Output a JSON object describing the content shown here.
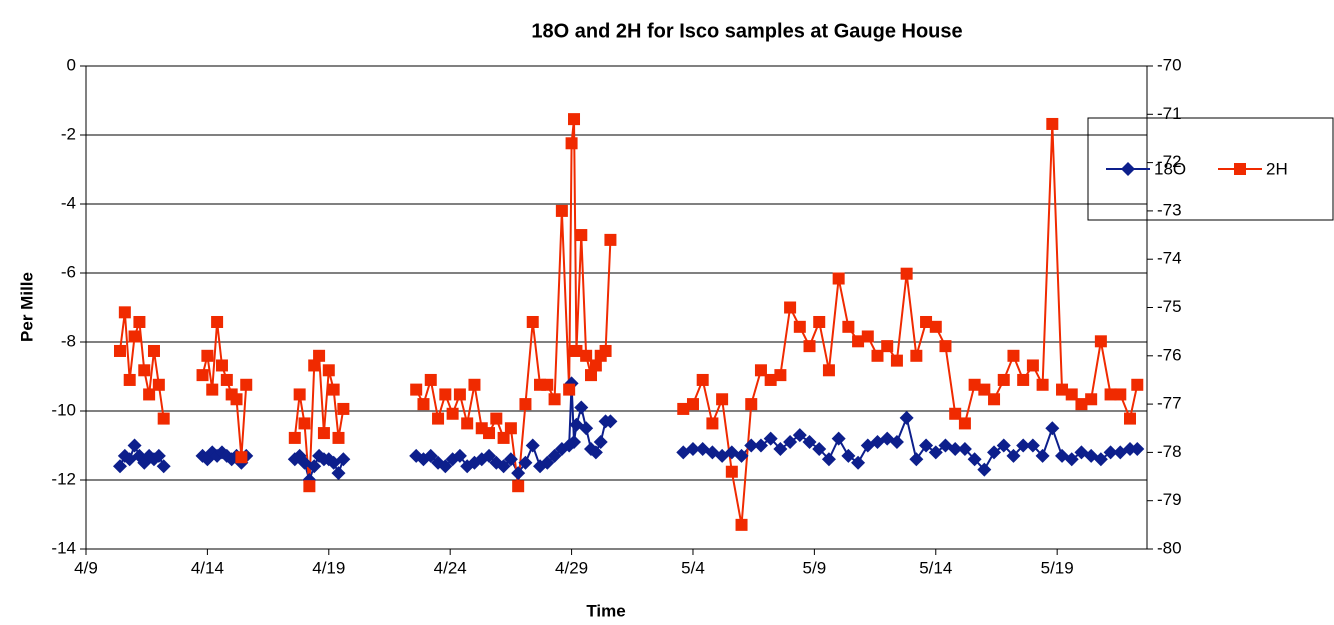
{
  "chart_data": {
    "type": "line",
    "title": "18O and 2H for Isco samples at Gauge House",
    "x_label": "Time",
    "y_label": "Per Mille",
    "x": [
      10.4,
      10.6,
      10.8,
      11.0,
      11.2,
      11.4,
      11.6,
      11.8,
      12.0,
      12.2,
      12.9,
      13.8,
      14.0,
      14.2,
      14.4,
      14.6,
      14.8,
      15.0,
      15.2,
      15.4,
      15.6,
      16.6,
      17.6,
      17.8,
      18.0,
      18.2,
      18.4,
      18.6,
      18.8,
      19.0,
      19.2,
      19.4,
      19.6,
      21.1,
      22.6,
      22.9,
      23.2,
      23.5,
      23.8,
      24.1,
      24.4,
      24.7,
      25.0,
      25.3,
      25.6,
      25.9,
      26.2,
      26.5,
      26.8,
      27.1,
      27.4,
      27.7,
      28.0,
      28.3,
      28.6,
      28.9,
      29.0,
      29.1,
      29.2,
      29.4,
      29.6,
      29.8,
      30.0,
      30.2,
      30.4,
      30.6,
      32.1,
      33.6,
      34.0,
      34.4,
      34.8,
      35.2,
      35.6,
      36.0,
      36.4,
      36.8,
      37.2,
      37.6,
      38.0,
      38.4,
      38.8,
      39.2,
      39.6,
      40.0,
      40.4,
      40.8,
      41.2,
      41.6,
      42.0,
      42.4,
      42.8,
      43.2,
      43.6,
      44.0,
      44.4,
      44.8,
      45.2,
      45.6,
      46.0,
      46.4,
      46.8,
      47.2,
      47.6,
      48.0,
      48.4,
      48.8,
      49.2,
      49.6,
      50.0,
      50.4,
      50.8,
      51.2,
      51.6,
      52.0,
      52.3
    ],
    "xlim": [
      9,
      52.7
    ],
    "xticks": [
      {
        "value": 9,
        "label": "4/9"
      },
      {
        "value": 14,
        "label": "4/14"
      },
      {
        "value": 19,
        "label": "4/19"
      },
      {
        "value": 24,
        "label": "4/24"
      },
      {
        "value": 29,
        "label": "4/29"
      },
      {
        "value": 34,
        "label": "5/4"
      },
      {
        "value": 39,
        "label": "5/9"
      },
      {
        "value": 44,
        "label": "5/14"
      },
      {
        "value": 49,
        "label": "5/19"
      }
    ],
    "ylim": [
      -14,
      0
    ],
    "yticks": [
      -14,
      -12,
      -10,
      -8,
      -6,
      -4,
      -2,
      0
    ],
    "y2lim": [
      -80,
      -70
    ],
    "y2ticks": [
      -80,
      -79,
      -78,
      -77,
      -76,
      -75,
      -74,
      -73,
      -72,
      -71,
      -70
    ],
    "grid": true,
    "legend": "right",
    "series": [
      {
        "name": "18O",
        "color": "#0d1f8c",
        "marker": "diamond",
        "values": [
          -11.6,
          -11.3,
          -11.4,
          -11.0,
          -11.3,
          -11.5,
          -11.3,
          -11.4,
          -11.3,
          -11.6,
          null,
          -11.3,
          -11.4,
          -11.2,
          -11.3,
          -11.2,
          -11.3,
          -11.4,
          -11.3,
          -11.5,
          -11.3,
          null,
          -11.4,
          -11.3,
          -11.5,
          -12.0,
          -11.6,
          -11.3,
          -11.4,
          -11.4,
          -11.5,
          -11.8,
          -11.4,
          null,
          -11.3,
          -11.4,
          -11.3,
          -11.5,
          -11.6,
          -11.4,
          -11.3,
          -11.6,
          -11.5,
          -11.4,
          -11.3,
          -11.5,
          -11.6,
          -11.4,
          -11.8,
          -11.5,
          -11.0,
          -11.6,
          -11.5,
          -11.3,
          -11.1,
          -11.0,
          -9.2,
          -10.9,
          -10.4,
          -9.9,
          -10.5,
          -11.1,
          -11.2,
          -10.9,
          -10.3,
          -10.3,
          null,
          -11.2,
          -11.1,
          -11.1,
          -11.2,
          -11.3,
          -11.2,
          -11.3,
          -11.0,
          -11.0,
          -10.8,
          -11.1,
          -10.9,
          -10.7,
          -10.9,
          -11.1,
          -11.4,
          -10.8,
          -11.3,
          -11.5,
          -11.0,
          -10.9,
          -10.8,
          -10.9,
          -10.2,
          -11.4,
          -11.0,
          -11.2,
          -11.0,
          -11.1,
          -11.1,
          -11.4,
          -11.7,
          -11.2,
          -11.0,
          -11.3,
          -11.0,
          -11.0,
          -11.3,
          -10.5,
          -11.3,
          -11.4,
          -11.2,
          -11.3,
          -11.4,
          -11.2,
          -11.2,
          -11.1,
          -11.1
        ]
      },
      {
        "name": "2H",
        "color": "#f02a00",
        "marker": "square",
        "axis": "y2",
        "values": [
          -75.9,
          -75.1,
          -76.5,
          -75.6,
          -75.3,
          -76.3,
          -76.8,
          -75.9,
          -76.6,
          -77.3,
          null,
          -76.4,
          -76.0,
          -76.7,
          -75.3,
          -76.2,
          -76.5,
          -76.8,
          -76.9,
          -78.1,
          -76.6,
          null,
          -77.7,
          -76.8,
          -77.4,
          -78.7,
          -76.2,
          -76.0,
          -77.6,
          -76.3,
          -76.7,
          -77.7,
          -77.1,
          null,
          -76.7,
          -77.0,
          -76.5,
          -77.3,
          -76.8,
          -77.2,
          -76.8,
          -77.4,
          -76.6,
          -77.5,
          -77.6,
          -77.3,
          -77.7,
          -77.5,
          -78.7,
          -77.0,
          -75.3,
          -76.6,
          -76.6,
          -76.9,
          -73.0,
          -76.7,
          -71.6,
          -71.1,
          -75.9,
          -73.5,
          -76.0,
          -76.4,
          -76.2,
          -76.0,
          -75.9,
          -73.6,
          null,
          -77.1,
          -77.0,
          -76.5,
          -77.4,
          -76.9,
          -78.4,
          -79.5,
          -77.0,
          -76.3,
          -76.5,
          -76.4,
          -75.0,
          -75.4,
          -75.8,
          -75.3,
          -76.3,
          -74.4,
          -75.4,
          -75.7,
          -75.6,
          -76.0,
          -75.8,
          -76.1,
          -74.3,
          -76.0,
          -75.3,
          -75.4,
          -75.8,
          -77.2,
          -77.4,
          -76.6,
          -76.7,
          -76.9,
          -76.5,
          -76.0,
          -76.5,
          -76.2,
          -76.6,
          -71.2,
          -76.7,
          -76.8,
          -77.0,
          -76.9,
          -75.7,
          -76.8,
          -76.8,
          -77.3,
          -76.6
        ]
      }
    ]
  }
}
